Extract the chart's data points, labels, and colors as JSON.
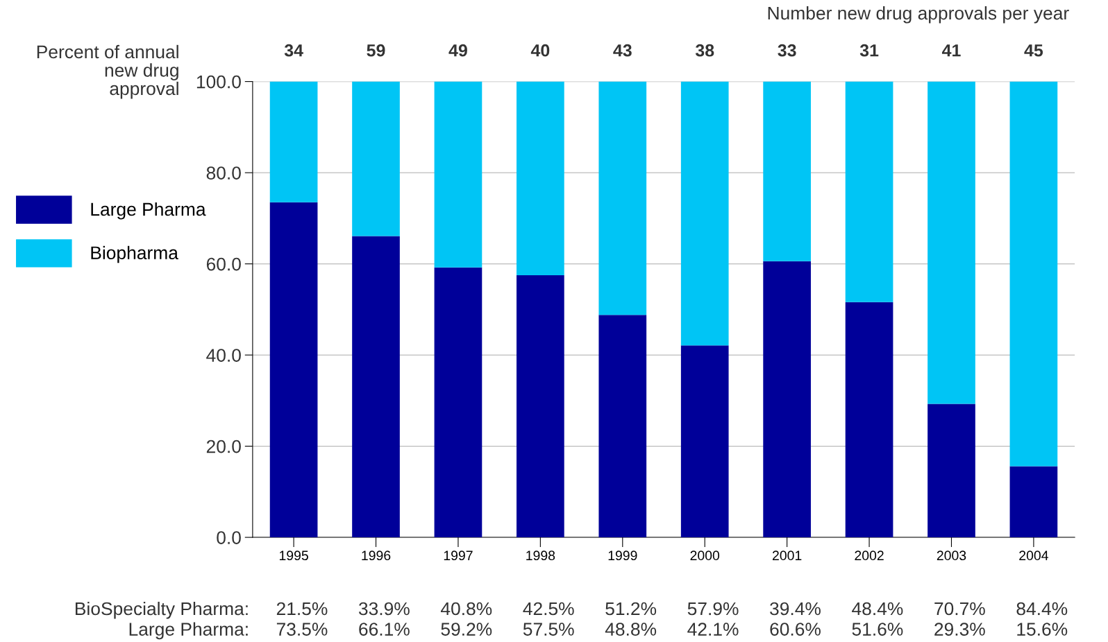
{
  "chart_data": {
    "type": "bar",
    "stacked": true,
    "ylabel": "Percent of annual\nnew drug\napproval",
    "categories": [
      "1995",
      "1996",
      "1997",
      "1998",
      "1999",
      "2000",
      "2001",
      "2002",
      "2003",
      "2004"
    ],
    "series": [
      {
        "name": "Large Pharma",
        "color": "#000099",
        "values": [
          73.5,
          66.1,
          59.2,
          57.5,
          48.8,
          42.1,
          60.6,
          51.6,
          29.3,
          15.6
        ]
      },
      {
        "name": "Biopharma",
        "color": "#00c5f5",
        "values": [
          26.5,
          33.9,
          40.8,
          42.5,
          51.2,
          57.9,
          39.4,
          48.4,
          70.7,
          84.4
        ]
      }
    ],
    "ylim": [
      0,
      100
    ],
    "yticks": [
      {
        "value": 0,
        "label": "0.0"
      },
      {
        "value": 20,
        "label": "20.0"
      },
      {
        "value": 40,
        "label": "40.0"
      },
      {
        "value": 60,
        "label": "60.0"
      },
      {
        "value": 80,
        "label": "80.0"
      },
      {
        "value": 100,
        "label": "100.0"
      }
    ],
    "grid": "y",
    "legend": "left",
    "annotations": [
      "Number new drug approvals per year",
      "34",
      "59",
      "49",
      "40",
      "43",
      "38",
      "33",
      "31",
      "41",
      "45",
      "BioSpecialty Pharma:",
      "21.5%",
      "33.9%",
      "40.8%",
      "42.5%",
      "51.2%",
      "57.9%",
      "39.4%",
      "48.4%",
      "70.7%",
      "84.4%",
      "Large Pharma:",
      "73.5%",
      "66.1%",
      "59.2%",
      "57.5%",
      "48.8%",
      "42.1%",
      "60.6%",
      "51.6%",
      "29.3%",
      "15.6%"
    ]
  }
}
